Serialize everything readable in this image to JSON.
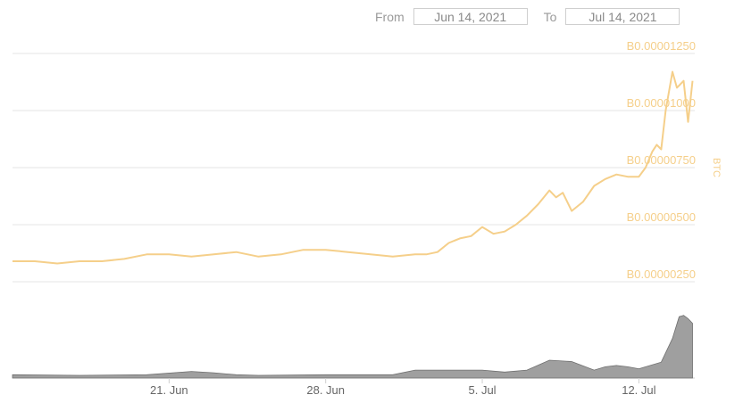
{
  "range_selector": {
    "from_label": "From",
    "from_value": "Jun 14, 2021",
    "to_label": "To",
    "to_value": "Jul 14, 2021"
  },
  "chart_data": {
    "type": "line",
    "ylabel": "BTC",
    "y_ticks": [
      "B0.00000250",
      "B0.00000500",
      "B0.00000750",
      "B0.00001000",
      "B0.00001250"
    ],
    "y_tick_values": [
      2.5e-06,
      5e-06,
      7.5e-06,
      1e-05,
      1.25e-05
    ],
    "ylim": [
      2.5e-06,
      1.25e-05
    ],
    "x_ticks": [
      "21. Jun",
      "28. Jun",
      "5. Jul",
      "12. Jul"
    ],
    "x_tick_days": [
      7,
      14,
      21,
      28
    ],
    "xlim_days": [
      0,
      30.5
    ],
    "grid": true,
    "line_color": "#f5cf8a",
    "volume_color": "#8e8e8e",
    "series": [
      {
        "kind": "price",
        "x": [
          0,
          1,
          2,
          3,
          4,
          5,
          6,
          7,
          8,
          9,
          10,
          11,
          12,
          13,
          14,
          15,
          16,
          17,
          18,
          18.5,
          19,
          19.5,
          20,
          20.5,
          21,
          21.5,
          22,
          22.5,
          23,
          23.5,
          24,
          24.3,
          24.6,
          25,
          25.5,
          26,
          26.5,
          27,
          27.5,
          28,
          28.3,
          28.6,
          28.8,
          29,
          29.2,
          29.5,
          29.7,
          30,
          30.2,
          30.4
        ],
        "values": [
          3.4e-06,
          3.4e-06,
          3.3e-06,
          3.4e-06,
          3.4e-06,
          3.5e-06,
          3.7e-06,
          3.7e-06,
          3.6e-06,
          3.7e-06,
          3.8e-06,
          3.6e-06,
          3.7e-06,
          3.9e-06,
          3.9e-06,
          3.8e-06,
          3.7e-06,
          3.6e-06,
          3.7e-06,
          3.7e-06,
          3.8e-06,
          4.2e-06,
          4.4e-06,
          4.5e-06,
          4.9e-06,
          4.6e-06,
          4.7e-06,
          5e-06,
          5.4e-06,
          5.9e-06,
          6.5e-06,
          6.2e-06,
          6.4e-06,
          5.6e-06,
          6e-06,
          6.7e-06,
          7e-06,
          7.2e-06,
          7.1e-06,
          7.1e-06,
          7.5e-06,
          8.2e-06,
          8.5e-06,
          8.3e-06,
          1e-05,
          1.17e-05,
          1.1e-05,
          1.13e-05,
          9.5e-06,
          1.13e-05
        ]
      },
      {
        "kind": "volume",
        "x": [
          0,
          3,
          6,
          8,
          9,
          10,
          11,
          14,
          17,
          18,
          19,
          20,
          21,
          22,
          23,
          24,
          25,
          26,
          26.5,
          27,
          27.5,
          28,
          29,
          29.5,
          29.8,
          30,
          30.2,
          30.4
        ],
        "values": [
          0.05,
          0.04,
          0.05,
          0.1,
          0.08,
          0.05,
          0.04,
          0.05,
          0.05,
          0.12,
          0.12,
          0.12,
          0.12,
          0.09,
          0.12,
          0.27,
          0.25,
          0.12,
          0.17,
          0.19,
          0.17,
          0.14,
          0.24,
          0.6,
          0.93,
          0.95,
          0.9,
          0.83
        ]
      }
    ]
  }
}
